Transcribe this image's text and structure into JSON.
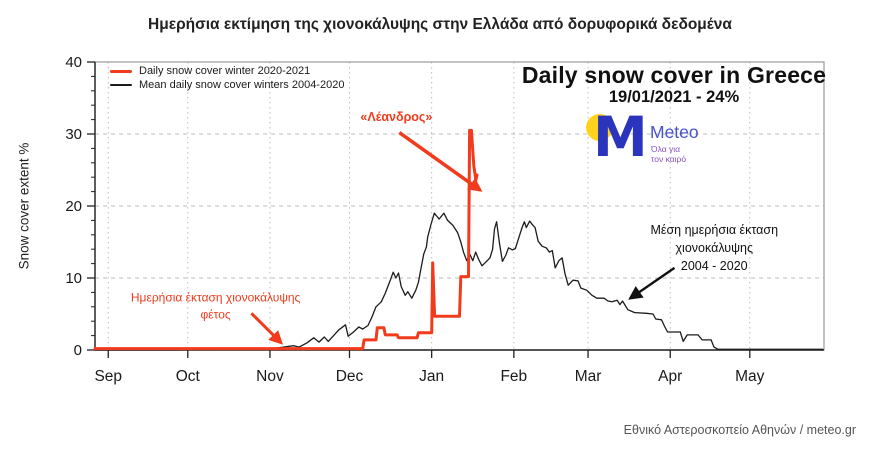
{
  "page": {
    "title": "Ημερήσια εκτίμηση της χιονοκάλυψης στην Ελλάδα από δορυφορικά δεδομένα",
    "footer": "Εθνικό Αστεροσκοπείο Αθηνών / meteo.gr"
  },
  "logo": {
    "brand": "Meteo",
    "tagline_line1": "Όλα για",
    "tagline_line2": "τον καιρό",
    "m_color": "#2b34bd",
    "brand_color": "#4653c9",
    "tagline_color": "#8a53ba",
    "circle_color": "#ffd21e"
  },
  "chart_data": {
    "type": "line",
    "title": "Daily snow cover in Greece",
    "subtitle": "19/01/2021 - 24%",
    "ylabel": "Snow cover extent %",
    "ylim": [
      0,
      40
    ],
    "yticks": [
      0,
      10,
      20,
      30,
      40
    ],
    "y_minor_step": 2,
    "x_domain_days": [
      -5,
      270
    ],
    "month_ticks": [
      {
        "day": 0,
        "label": "Sep"
      },
      {
        "day": 30,
        "label": "Oct"
      },
      {
        "day": 61,
        "label": "Nov"
      },
      {
        "day": 91,
        "label": "Dec"
      },
      {
        "day": 122,
        "label": "Jan"
      },
      {
        "day": 153,
        "label": "Feb"
      },
      {
        "day": 181,
        "label": "Mar"
      },
      {
        "day": 212,
        "label": "Apr"
      },
      {
        "day": 242,
        "label": "May"
      }
    ],
    "grid": true,
    "legend_position": "top-left",
    "legend": [
      {
        "label": "Daily snow cover winter 2020-2021",
        "color": "#f23b1c",
        "thickness": 3
      },
      {
        "label": "Mean daily snow cover winters 2004-2020",
        "color": "#1c1c1c",
        "thickness": 2
      }
    ],
    "series": [
      {
        "name": "Mean daily snow cover winters 2004-2020",
        "color": "#1c1c1c",
        "width": 1.3,
        "points": [
          [
            -5,
            0
          ],
          [
            25,
            0
          ],
          [
            45,
            0.1
          ],
          [
            60,
            0.1
          ],
          [
            66,
            0.4
          ],
          [
            70,
            0.6
          ],
          [
            72,
            0.4
          ],
          [
            75,
            1
          ],
          [
            77.5,
            1.7
          ],
          [
            79.5,
            1.1
          ],
          [
            81.5,
            1.8
          ],
          [
            83,
            1.2
          ],
          [
            85.5,
            2.2
          ],
          [
            87,
            2.8
          ],
          [
            89.5,
            3.5
          ],
          [
            90.5,
            1.9
          ],
          [
            92.5,
            2.5
          ],
          [
            94.5,
            3.2
          ],
          [
            96,
            2.9
          ],
          [
            98,
            3.4
          ],
          [
            99.5,
            4.6
          ],
          [
            101,
            6
          ],
          [
            103,
            6.7
          ],
          [
            104.5,
            7.9
          ],
          [
            106.5,
            9.8
          ],
          [
            107.5,
            10.8
          ],
          [
            108.5,
            10
          ],
          [
            109.5,
            10.7
          ],
          [
            110.5,
            8.8
          ],
          [
            112,
            7.6
          ],
          [
            113,
            8.1
          ],
          [
            114.5,
            7.2
          ],
          [
            116,
            8.3
          ],
          [
            117,
            9.4
          ],
          [
            118,
            11.4
          ],
          [
            119,
            13.3
          ],
          [
            120,
            14.3
          ],
          [
            120.5,
            15.7
          ],
          [
            121.8,
            17.5
          ],
          [
            123,
            19
          ],
          [
            124.8,
            18.2
          ],
          [
            126.6,
            19
          ],
          [
            128,
            18
          ],
          [
            130,
            17.3
          ],
          [
            131.8,
            16.3
          ],
          [
            133,
            15
          ],
          [
            134,
            13.6
          ],
          [
            135.2,
            12.4
          ],
          [
            136.4,
            13.3
          ],
          [
            137.5,
            12.4
          ],
          [
            138.6,
            13.6
          ],
          [
            139.7,
            12.6
          ],
          [
            141,
            11.7
          ],
          [
            142.4,
            12.2
          ],
          [
            144,
            12.8
          ],
          [
            145,
            14
          ],
          [
            145.7,
            16.8
          ],
          [
            146.5,
            17.8
          ],
          [
            147.6,
            14.8
          ],
          [
            148.7,
            12.3
          ],
          [
            150,
            13.2
          ],
          [
            151,
            14.2
          ],
          [
            152.5,
            13.9
          ],
          [
            153.6,
            14.1
          ],
          [
            154.7,
            15.4
          ],
          [
            156,
            16.9
          ],
          [
            157,
            17.8
          ],
          [
            157.7,
            17
          ],
          [
            159,
            17.9
          ],
          [
            160,
            17.4
          ],
          [
            161,
            17
          ],
          [
            162.2,
            15.1
          ],
          [
            163.7,
            14.4
          ],
          [
            165.2,
            14.2
          ],
          [
            166.4,
            13.6
          ],
          [
            167.5,
            13.8
          ],
          [
            168.6,
            11.4
          ],
          [
            170,
            12.4
          ],
          [
            171.2,
            12.8
          ],
          [
            172.3,
            10.6
          ],
          [
            173.5,
            9
          ],
          [
            175.3,
            9.7
          ],
          [
            177.2,
            9.6
          ],
          [
            178.3,
            8.6
          ],
          [
            180.5,
            8.3
          ],
          [
            182.5,
            7.6
          ],
          [
            184.3,
            7.2
          ],
          [
            187,
            7.2
          ],
          [
            188.5,
            6.8
          ],
          [
            190,
            6.7
          ],
          [
            192,
            6.9
          ],
          [
            193,
            6.3
          ],
          [
            194,
            6.8
          ],
          [
            195,
            6.2
          ],
          [
            196,
            5.6
          ],
          [
            198.6,
            5.2
          ],
          [
            203,
            5.1
          ],
          [
            205.5,
            5
          ],
          [
            206.5,
            4.3
          ],
          [
            208.7,
            4.2
          ],
          [
            210,
            3.2
          ],
          [
            211,
            2.5
          ],
          [
            215.8,
            2.5
          ],
          [
            216.9,
            1.2
          ],
          [
            218.4,
            2.1
          ],
          [
            222.5,
            2.1
          ],
          [
            224,
            1.4
          ],
          [
            227.4,
            1.4
          ],
          [
            228.5,
            0.4
          ],
          [
            230,
            0.1
          ],
          [
            269.5,
            0.1
          ]
        ]
      },
      {
        "name": "Daily snow cover winter 2020-2021",
        "color": "#f23b1c",
        "width": 3,
        "points": [
          [
            -5,
            0.2
          ],
          [
            96,
            0.2
          ],
          [
            96.5,
            1.4
          ],
          [
            101,
            1.4
          ],
          [
            101.5,
            3.1
          ],
          [
            104,
            3.1
          ],
          [
            104.5,
            2.1
          ],
          [
            109,
            2.1
          ],
          [
            109.5,
            1.7
          ],
          [
            116.5,
            1.7
          ],
          [
            117,
            2.4
          ],
          [
            122,
            2.4
          ],
          [
            122.4,
            12.1
          ],
          [
            123.1,
            4.7
          ],
          [
            132.5,
            4.7
          ],
          [
            133,
            10.2
          ],
          [
            135.9,
            10.2
          ],
          [
            136.3,
            30.5
          ],
          [
            137,
            30.5
          ],
          [
            137.9,
            25.6
          ],
          [
            138.7,
            23.6
          ],
          [
            139.1,
            24.3
          ]
        ]
      }
    ],
    "annotations": [
      {
        "id": "leandros",
        "lines": [
          "«Λέανδρος»"
        ],
        "color": "#f23b1c",
        "text_day": 108.7,
        "text_pct": 32.4,
        "arrow_from_day": 109.8,
        "arrow_from_pct": 30.2,
        "arrow_to_day": 140.3,
        "arrow_to_pct": 22.2,
        "arrow_width": 3.5
      },
      {
        "id": "daily-extent",
        "lines": [
          "Ημερήσια έκταση χιονοκάλυψης",
          "φέτος"
        ],
        "color": "#f23b1c",
        "text_day": 40.5,
        "text_pct": 6.0,
        "arrow_from_day": 54,
        "arrow_from_pct": 5.1,
        "arrow_to_day": 65.2,
        "arrow_to_pct": 1.0,
        "arrow_width": 3
      },
      {
        "id": "mean-extent",
        "lines": [
          "Μέση ημερήσια έκταση",
          "χιονοκάλυψης",
          "2004 - 2020"
        ],
        "color": "#111111",
        "text_day": 228.6,
        "text_pct": 14.2,
        "arrow_from_day": 213.6,
        "arrow_from_pct": 11.4,
        "arrow_to_day": 197.0,
        "arrow_to_pct": 7.2,
        "arrow_width": 2.4
      }
    ]
  }
}
